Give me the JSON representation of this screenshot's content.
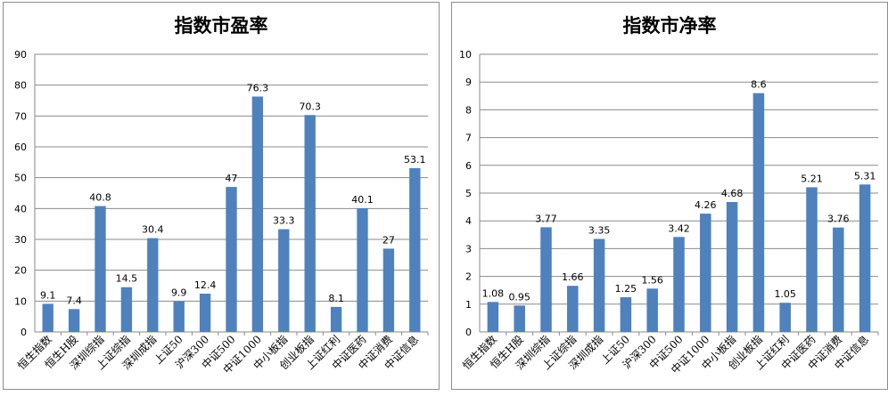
{
  "chart_data": [
    {
      "type": "bar",
      "title": "指数市盈率",
      "categories": [
        "恒生指数",
        "恒生H股",
        "深圳综指",
        "上证综指",
        "深圳成指",
        "上证50",
        "沪深300",
        "中证500",
        "中证1000",
        "中小板指",
        "创业板指",
        "上证红利",
        "中证医药",
        "中证消费",
        "中证信息"
      ],
      "values": [
        9.1,
        7.4,
        40.8,
        14.5,
        30.4,
        9.9,
        12.4,
        47,
        76.3,
        33.3,
        70.3,
        8.1,
        40.1,
        27,
        53.1
      ],
      "value_labels": [
        "9.1",
        "7.4",
        "40.8",
        "14.5",
        "30.4",
        "9.9",
        "12.4",
        "47",
        "76.3",
        "33.3",
        "70.3",
        "8.1",
        "40.1",
        "27",
        "53.1"
      ],
      "yticks": [
        "0",
        "10",
        "20",
        "30",
        "40",
        "50",
        "60",
        "70",
        "80",
        "90"
      ],
      "ylim": [
        0,
        90
      ],
      "xlabel": "",
      "ylabel": "",
      "grid": true,
      "bar_color": "#4f81bd"
    },
    {
      "type": "bar",
      "title": "指数市净率",
      "categories": [
        "恒生指数",
        "恒生H股",
        "深圳综指",
        "上证综指",
        "深圳成指",
        "上证50",
        "沪深300",
        "中证500",
        "中证1000",
        "中小板指",
        "创业板指",
        "上证红利",
        "中证医药",
        "中证消费",
        "中证信息"
      ],
      "values": [
        1.08,
        0.95,
        3.77,
        1.66,
        3.35,
        1.25,
        1.56,
        3.42,
        4.26,
        4.68,
        8.6,
        1.05,
        5.21,
        3.76,
        5.31
      ],
      "value_labels": [
        "1.08",
        "0.95",
        "3.77",
        "1.66",
        "3.35",
        "1.25",
        "1.56",
        "3.42",
        "4.26",
        "4.68",
        "8.6",
        "1.05",
        "5.21",
        "3.76",
        "5.31"
      ],
      "yticks": [
        "0",
        "1",
        "2",
        "3",
        "4",
        "5",
        "6",
        "7",
        "8",
        "9",
        "10"
      ],
      "ylim": [
        0,
        10
      ],
      "xlabel": "",
      "ylabel": "",
      "grid": true,
      "bar_color": "#4f81bd"
    }
  ]
}
